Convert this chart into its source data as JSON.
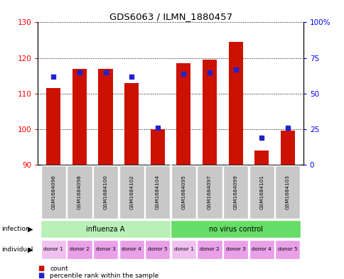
{
  "title": "GDS6063 / ILMN_1880457",
  "samples": [
    "GSM1684096",
    "GSM1684098",
    "GSM1684100",
    "GSM1684102",
    "GSM1684104",
    "GSM1684095",
    "GSM1684097",
    "GSM1684099",
    "GSM1684101",
    "GSM1684103"
  ],
  "count_values": [
    111.5,
    117.0,
    117.0,
    113.0,
    100.0,
    118.5,
    119.5,
    124.5,
    94.0,
    99.5
  ],
  "percentile_values": [
    62,
    65,
    65,
    62,
    26,
    64,
    65,
    67,
    19,
    26
  ],
  "ylim_left": [
    90,
    130
  ],
  "ylim_right": [
    0,
    100
  ],
  "yticks_left": [
    90,
    100,
    110,
    120,
    130
  ],
  "yticks_right": [
    0,
    25,
    50,
    75,
    100
  ],
  "ytick_labels_right": [
    "0",
    "25",
    "50",
    "75",
    "100%"
  ],
  "infection_groups": [
    {
      "label": "influenza A",
      "start": 0,
      "end": 5,
      "color": "#b0f0b0"
    },
    {
      "label": "no virus control",
      "start": 5,
      "end": 10,
      "color": "#66dd66"
    }
  ],
  "individual_labels": [
    "donor 1",
    "donor 2",
    "donor 3",
    "donor 4",
    "donor 5",
    "donor 1",
    "donor 2",
    "donor 3",
    "donor 4",
    "donor 5"
  ],
  "bar_color": "#cc1100",
  "percentile_color": "#2222cc",
  "bar_bottom": 90,
  "legend_count_label": "count",
  "legend_percentile_label": "percentile rank within the sample"
}
